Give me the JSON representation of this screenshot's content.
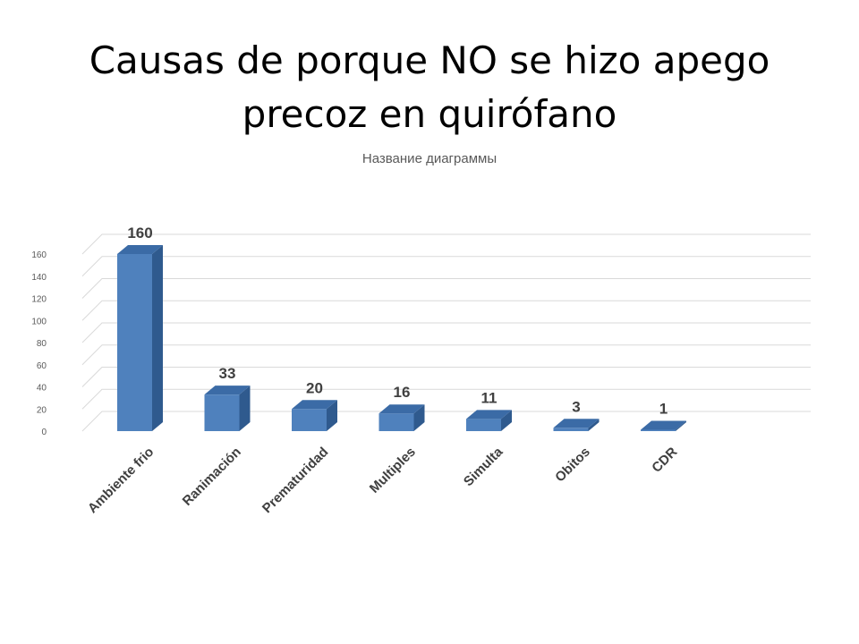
{
  "slide": {
    "title_line1": "Causas de porque NO se hizo apego",
    "title_line2": "precoz en quirófano"
  },
  "chart_data": {
    "type": "bar",
    "style": "3d-column",
    "title": "Название диаграммы",
    "categories": [
      "Ambiente frio",
      "Ranimación",
      "Prematuridad",
      "Multiples",
      "Simulta",
      "Obitos",
      "CDR"
    ],
    "values": [
      160,
      33,
      20,
      16,
      11,
      3,
      1
    ],
    "y_ticks": [
      0,
      20,
      40,
      60,
      80,
      100,
      120,
      140,
      160
    ],
    "ylim": [
      0,
      180
    ],
    "grid": true,
    "legend": "none",
    "colors": {
      "bar_front": "#4F81BD",
      "bar_side": "#2F5A8E",
      "bar_top": "#3B6BA6",
      "grid": "#D9D9D9",
      "chart_title": "#595959",
      "label": "#404040"
    }
  }
}
